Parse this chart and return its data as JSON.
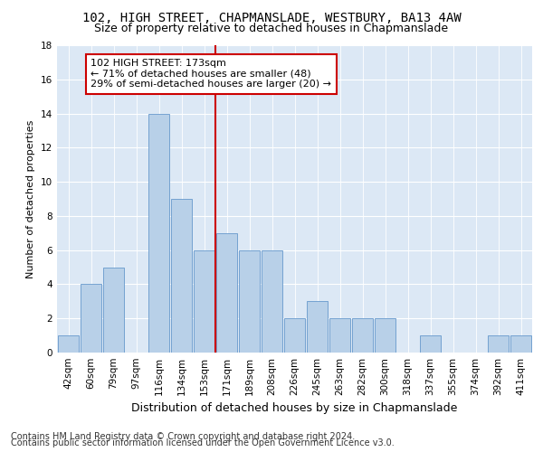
{
  "title1": "102, HIGH STREET, CHAPMANSLADE, WESTBURY, BA13 4AW",
  "title2": "Size of property relative to detached houses in Chapmanslade",
  "xlabel": "Distribution of detached houses by size in Chapmanslade",
  "ylabel": "Number of detached properties",
  "categories": [
    "42sqm",
    "60sqm",
    "79sqm",
    "97sqm",
    "116sqm",
    "134sqm",
    "153sqm",
    "171sqm",
    "189sqm",
    "208sqm",
    "226sqm",
    "245sqm",
    "263sqm",
    "282sqm",
    "300sqm",
    "318sqm",
    "337sqm",
    "355sqm",
    "374sqm",
    "392sqm",
    "411sqm"
  ],
  "values": [
    1,
    4,
    5,
    0,
    14,
    9,
    6,
    7,
    6,
    6,
    2,
    3,
    2,
    2,
    2,
    0,
    1,
    0,
    0,
    1,
    1
  ],
  "bar_color": "#b8d0e8",
  "bar_edge_color": "#6699cc",
  "subject_line_index": 7,
  "subject_line_color": "#cc0000",
  "annotation_line1": "102 HIGH STREET: 173sqm",
  "annotation_line2": "← 71% of detached houses are smaller (48)",
  "annotation_line3": "29% of semi-detached houses are larger (20) →",
  "annotation_box_color": "#cc0000",
  "ylim": [
    0,
    18
  ],
  "yticks": [
    0,
    2,
    4,
    6,
    8,
    10,
    12,
    14,
    16,
    18
  ],
  "background_color": "#dce8f5",
  "footer1": "Contains HM Land Registry data © Crown copyright and database right 2024.",
  "footer2": "Contains public sector information licensed under the Open Government Licence v3.0.",
  "title1_fontsize": 10,
  "title2_fontsize": 9,
  "xlabel_fontsize": 9,
  "ylabel_fontsize": 8,
  "tick_fontsize": 7.5,
  "annotation_fontsize": 8,
  "footer_fontsize": 7
}
